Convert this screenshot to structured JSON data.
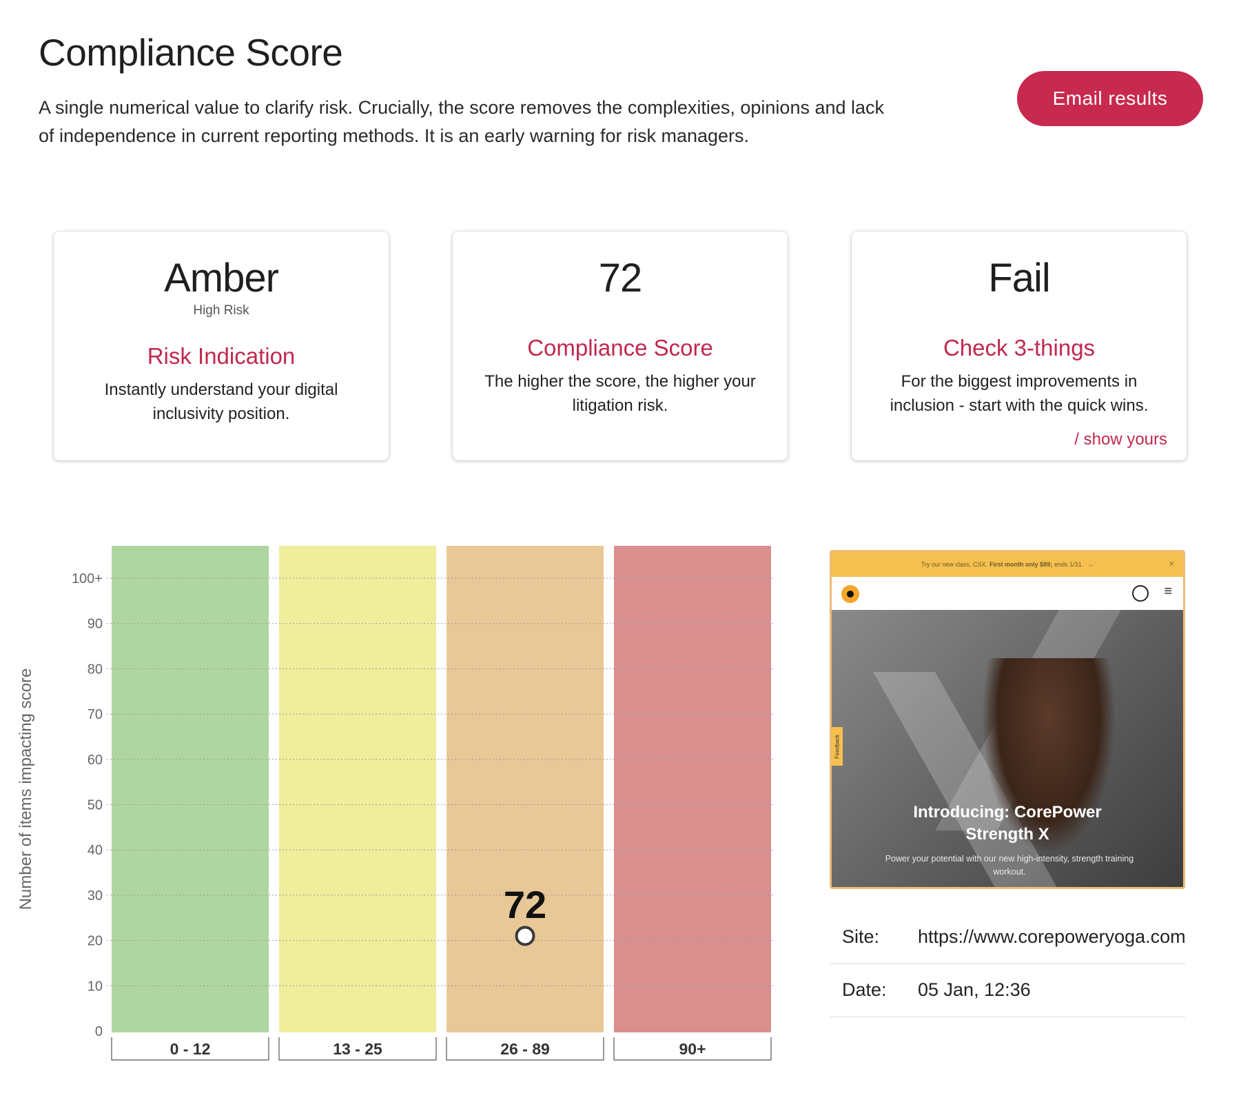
{
  "header": {
    "title": "Compliance Score",
    "intro": "A single numerical value to clarify risk. Crucially, the score removes the complexities, opinions and lack of independence in current reporting methods. It is an early warning for risk managers.",
    "email_button": "Email results"
  },
  "cards": [
    {
      "big": "Amber",
      "small": "High Risk",
      "title": "Risk Indication",
      "description": "Instantly understand your digital inclusivity position."
    },
    {
      "big": "72",
      "title": "Compliance Score",
      "description": "The higher the score, the higher your litigation risk."
    },
    {
      "big": "Fail",
      "title": "Check 3-things",
      "description": "For the biggest improvements in inclusion - start with the quick wins.",
      "link": "/ show yours"
    }
  ],
  "chart_data": {
    "type": "bar",
    "categories": [
      "0 - 12",
      "13 - 25",
      "26 - 89",
      "90+"
    ],
    "band_colors": [
      "#afd6a0",
      "#f0ed9c",
      "#e9c897",
      "#da8f8e"
    ],
    "ylabel": "Number of items impacting score",
    "yticks": [
      "0",
      "10",
      "20",
      "30",
      "40",
      "50",
      "60",
      "70",
      "80",
      "90",
      "100+"
    ],
    "ylim": [
      0,
      100
    ],
    "grid": true,
    "marker": {
      "category": "26 - 89",
      "y": 21,
      "label": "72"
    }
  },
  "thumbnail": {
    "promo_text": "Try our new class, CSX.",
    "promo_bold": "First month only $89;",
    "promo_end": "ends 1/31.",
    "promo_arrow": "→",
    "promo_close": "✕",
    "feedback": "Feedback",
    "hero_title_line1": "Introducing: CorePower",
    "hero_title_line2": "Strength X",
    "hero_sub": "Power your potential with our new high-intensity, strength training workout.",
    "menu_icon": "≡"
  },
  "info": {
    "site_label": "Site:",
    "site_value": "https://www.corepoweryoga.com",
    "date_label": "Date:",
    "date_value": "05 Jan, 12:36"
  }
}
